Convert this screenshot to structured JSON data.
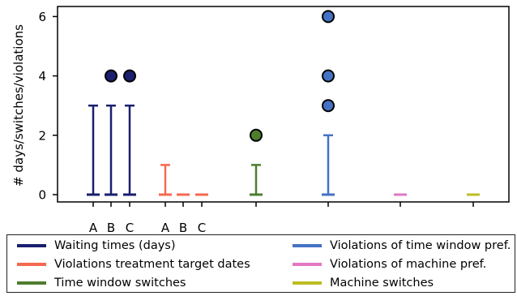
{
  "chart_data": {
    "type": "boxplot",
    "ylabel": "# days/switches/violations",
    "ylim": [
      -0.3,
      6.3
    ],
    "yticks": [
      0,
      2,
      4,
      6
    ],
    "grid": false,
    "legend_position": "bottom",
    "groups": [
      {
        "name": "Waiting times (days)",
        "color": "#1a1f6e",
        "tick_labels": [
          "A",
          "B",
          "C"
        ],
        "boxes": [
          {
            "label": "A",
            "min": 0,
            "q1": 0,
            "median": 0,
            "q3": 0,
            "max": 3,
            "outliers": []
          },
          {
            "label": "B",
            "min": 0,
            "q1": 0,
            "median": 0,
            "q3": 0,
            "max": 3,
            "outliers": [
              4
            ]
          },
          {
            "label": "C",
            "min": 0,
            "q1": 0,
            "median": 0,
            "q3": 0,
            "max": 3,
            "outliers": [
              4
            ]
          }
        ]
      },
      {
        "name": "Violations treatment target dates",
        "color": "#f4694f",
        "tick_labels": [
          "A",
          "B",
          "C"
        ],
        "boxes": [
          {
            "label": "A",
            "min": 0,
            "q1": 0,
            "median": 0,
            "q3": 0,
            "max": 1,
            "outliers": []
          },
          {
            "label": "B",
            "min": 0,
            "q1": 0,
            "median": 0,
            "q3": 0,
            "max": 0,
            "outliers": []
          },
          {
            "label": "C",
            "min": 0,
            "q1": 0,
            "median": 0,
            "q3": 0,
            "max": 0,
            "outliers": []
          }
        ]
      },
      {
        "name": "Time window switches",
        "color": "#4e7d2f",
        "tick_labels": [
          ""
        ],
        "boxes": [
          {
            "label": "",
            "min": 0,
            "q1": 0,
            "median": 0,
            "q3": 0,
            "max": 1,
            "outliers": [
              2
            ]
          }
        ]
      },
      {
        "name": "Violations of time window pref.",
        "color": "#4472c4",
        "tick_labels": [
          ""
        ],
        "boxes": [
          {
            "label": "",
            "min": 0,
            "q1": 0,
            "median": 0,
            "q3": 0,
            "max": 2,
            "outliers": [
              3,
              4,
              6
            ]
          }
        ]
      },
      {
        "name": "Violations of machine pref.",
        "color": "#e377c2",
        "tick_labels": [
          ""
        ],
        "boxes": [
          {
            "label": "",
            "min": 0,
            "q1": 0,
            "median": 0,
            "q3": 0,
            "max": 0,
            "outliers": []
          }
        ]
      },
      {
        "name": "Machine switches",
        "color": "#bcbd22",
        "tick_labels": [
          ""
        ],
        "boxes": [
          {
            "label": "",
            "min": 0,
            "q1": 0,
            "median": 0,
            "q3": 0,
            "max": 0,
            "outliers": []
          }
        ]
      }
    ]
  },
  "legend": {
    "items": [
      {
        "label": "Waiting times (days)",
        "color": "#1a1f6e"
      },
      {
        "label": "Violations of time window pref.",
        "color": "#4472c4"
      },
      {
        "label": "Violations treatment target dates",
        "color": "#f4694f"
      },
      {
        "label": "Violations of machine pref.",
        "color": "#e377c2"
      },
      {
        "label": "Time window switches",
        "color": "#4e7d2f"
      },
      {
        "label": "Machine switches",
        "color": "#bcbd22"
      }
    ]
  }
}
